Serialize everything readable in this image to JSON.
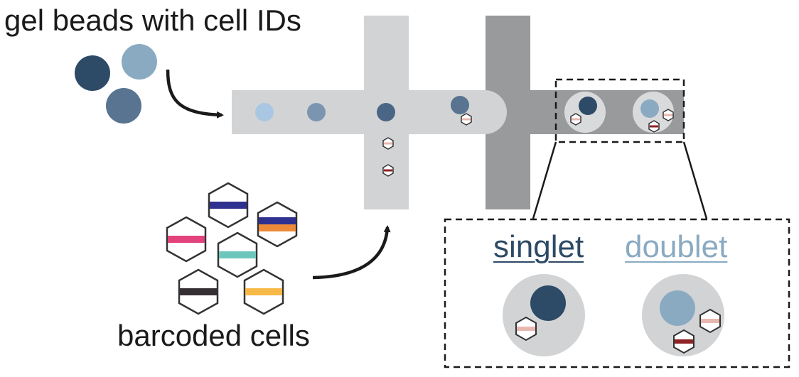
{
  "labels": {
    "beads": "gel beads with cell IDs",
    "cells": "barcoded cells",
    "singlet": "singlet",
    "doublet": "doublet"
  },
  "colors": {
    "bead_dark": "#2d4a66",
    "bead_mid": "#587491",
    "bead_light": "#8aaac2",
    "bead_pale": "#a9c7e2",
    "channel_light": "#d2d3d5",
    "channel_dark": "#999a9c",
    "droplet": "#d9dadc",
    "barcode_navy": "#2e3190",
    "barcode_orange": "#ec8a3a",
    "barcode_pink": "#e2437d",
    "barcode_teal": "#6cc6bb",
    "barcode_black": "#352e32",
    "barcode_yellow": "#f6b847",
    "barcode_small_pink": "#e8b8b0",
    "barcode_small_red": "#8e2326"
  }
}
